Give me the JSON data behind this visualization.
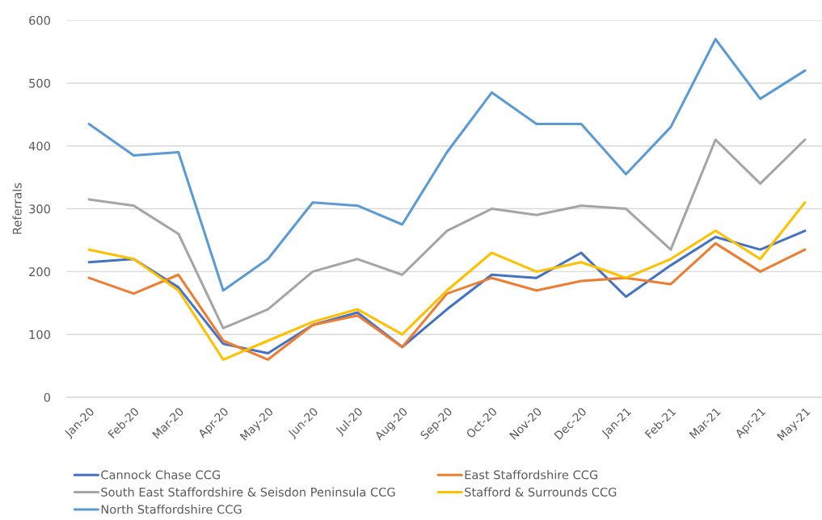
{
  "chart_data": {
    "type": "line",
    "ylabel": "Referrals",
    "categories": [
      "Jan-20",
      "Feb-20",
      "Mar-20",
      "Apr-20",
      "May-20",
      "Jun-20",
      "Jul-20",
      "Aug-20",
      "Sep-20",
      "Oct-20",
      "Nov-20",
      "Dec-20",
      "Jan-21",
      "Feb-21",
      "Mar-21",
      "Apr-21",
      "May-21"
    ],
    "series": [
      {
        "name": "Cannock Chase CCG",
        "color": "#4472c4",
        "values": [
          215,
          220,
          175,
          85,
          70,
          115,
          135,
          80,
          140,
          195,
          190,
          230,
          160,
          210,
          255,
          235,
          265
        ]
      },
      {
        "name": "East Staffordshire CCG",
        "color": "#ed7d31",
        "values": [
          190,
          165,
          195,
          90,
          60,
          115,
          130,
          80,
          165,
          190,
          170,
          185,
          190,
          180,
          245,
          200,
          235
        ]
      },
      {
        "name": "South East Staffordshire & Seisdon Peninsula CCG",
        "color": "#a5a5a5",
        "values": [
          315,
          305,
          260,
          110,
          140,
          200,
          220,
          195,
          265,
          300,
          290,
          305,
          300,
          235,
          410,
          340,
          410
        ]
      },
      {
        "name": "Stafford & Surrounds CCG",
        "color": "#ffc000",
        "values": [
          235,
          220,
          170,
          60,
          90,
          120,
          140,
          100,
          170,
          230,
          200,
          215,
          190,
          220,
          265,
          220,
          310
        ]
      },
      {
        "name": "North Staffordshire CCG",
        "color": "#5b9bd5",
        "values": [
          435,
          385,
          390,
          170,
          220,
          310,
          305,
          275,
          390,
          485,
          435,
          435,
          355,
          430,
          570,
          475,
          520
        ]
      }
    ],
    "ylim": [
      0,
      600
    ],
    "yticks": [
      0,
      100,
      200,
      300,
      400,
      500,
      600
    ],
    "grid": "y",
    "legend": "bottom",
    "marker": "none",
    "line_style": "solid"
  }
}
